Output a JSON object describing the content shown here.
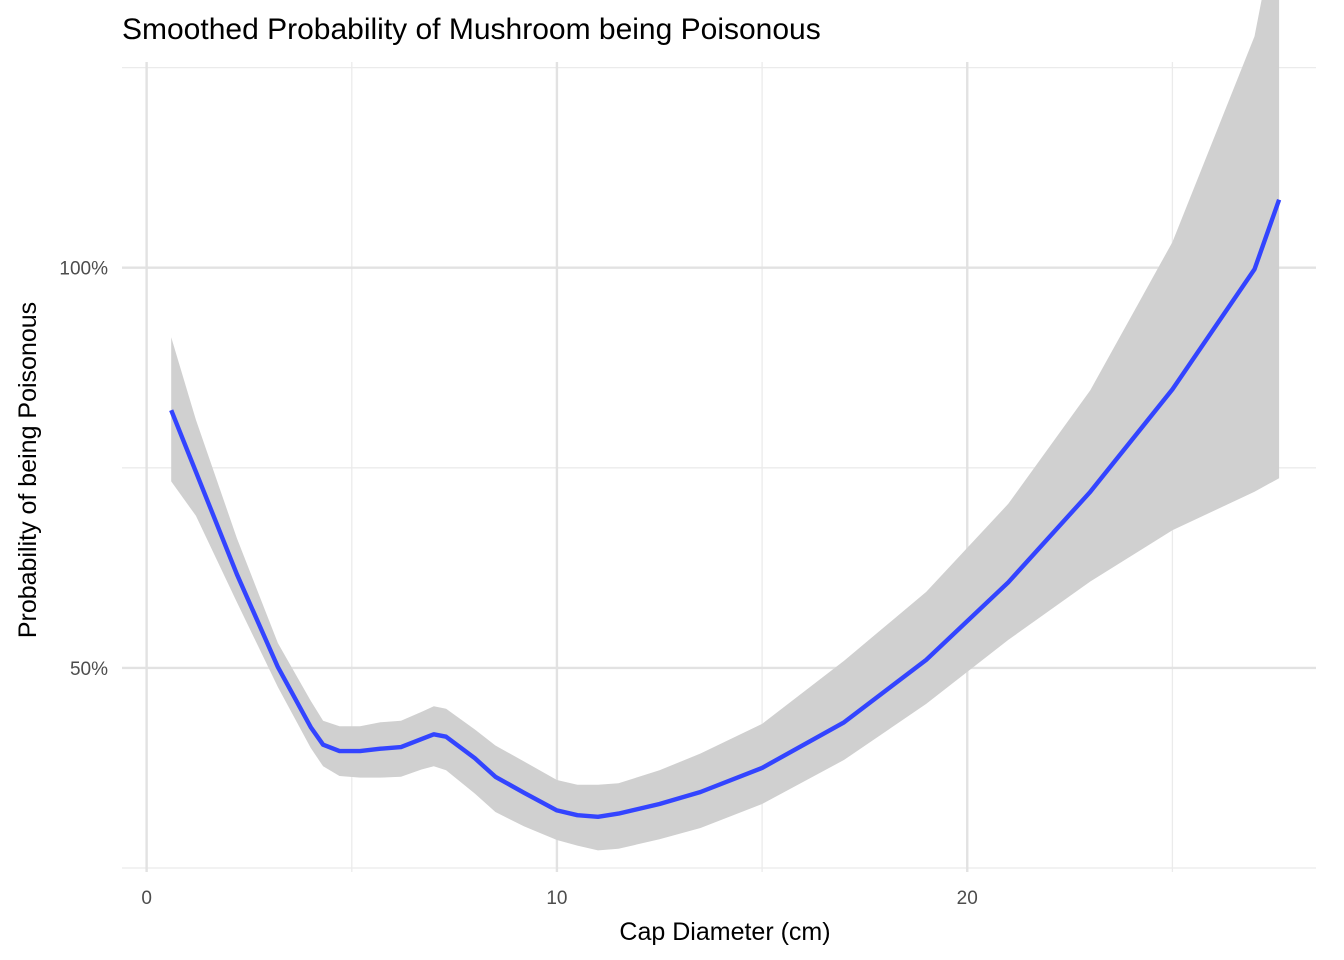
{
  "chart_data": {
    "type": "line",
    "title": "Smoothed Probability of Mushroom being Poisonous",
    "xlabel": "Cap Diameter (cm)",
    "ylabel": "Probability of being Poisonous",
    "xlim": [
      -0.6,
      28.5
    ],
    "ylim": [
      0.245,
      1.257
    ],
    "x_ticks": [
      0,
      10,
      20
    ],
    "x_tick_labels": [
      "0",
      "10",
      "20"
    ],
    "x_minor_ticks": [
      5,
      15,
      25
    ],
    "y_ticks": [
      0.5,
      1.0
    ],
    "y_tick_labels": [
      "50%",
      "100%"
    ],
    "y_minor_ticks": [
      0.25,
      0.75,
      1.25
    ],
    "grid": true,
    "legend": "none",
    "series": [
      {
        "line_color": "#3344ff",
        "band_color": "#d0d0d0",
        "x": [
          0.6,
          1.2,
          2.2,
          3.2,
          4.0,
          4.3,
          4.7,
          5.2,
          5.7,
          6.2,
          6.7,
          7.0,
          7.3,
          8.0,
          8.5,
          9.2,
          10.0,
          10.5,
          11.0,
          11.5,
          12.5,
          13.5,
          15.0,
          17.0,
          19.0,
          21.0,
          23.0,
          25.0,
          27.0,
          27.6
        ],
        "y": [
          0.822,
          0.745,
          0.617,
          0.501,
          0.426,
          0.404,
          0.396,
          0.396,
          0.399,
          0.401,
          0.411,
          0.417,
          0.414,
          0.387,
          0.364,
          0.344,
          0.322,
          0.316,
          0.314,
          0.318,
          0.33,
          0.345,
          0.375,
          0.432,
          0.51,
          0.607,
          0.72,
          0.848,
          0.998,
          1.085
        ],
        "lower": [
          0.733,
          0.69,
          0.582,
          0.476,
          0.4,
          0.377,
          0.365,
          0.363,
          0.363,
          0.364,
          0.373,
          0.377,
          0.372,
          0.343,
          0.32,
          0.302,
          0.285,
          0.278,
          0.272,
          0.274,
          0.286,
          0.3,
          0.33,
          0.385,
          0.455,
          0.535,
          0.608,
          0.672,
          0.72,
          0.737
        ],
        "upper": [
          0.913,
          0.81,
          0.662,
          0.531,
          0.459,
          0.434,
          0.427,
          0.427,
          0.432,
          0.434,
          0.445,
          0.452,
          0.449,
          0.423,
          0.403,
          0.383,
          0.36,
          0.354,
          0.354,
          0.356,
          0.372,
          0.393,
          0.43,
          0.509,
          0.595,
          0.705,
          0.847,
          1.032,
          1.289,
          1.447
        ]
      }
    ]
  }
}
